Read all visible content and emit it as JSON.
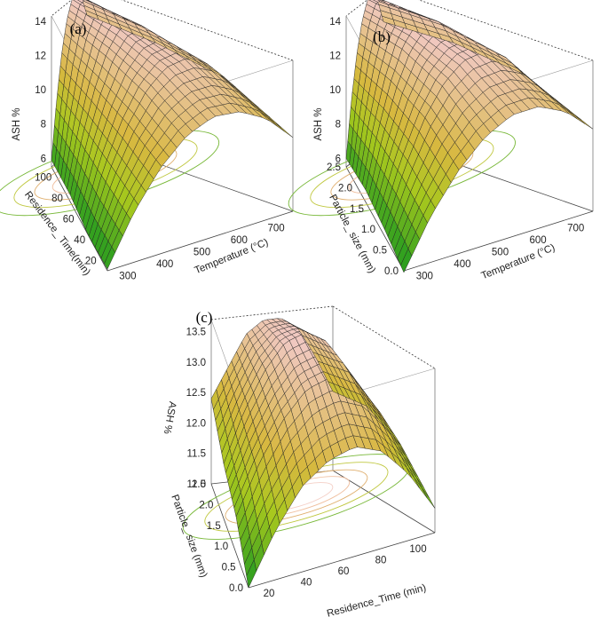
{
  "chart_data": [
    {
      "type": "surface",
      "panel_label": "(a)",
      "zlabel": "ASH %",
      "xlabel": "Temperature (°C)",
      "ylabel": "Residence_ Time(min)",
      "xlim": [
        250,
        750
      ],
      "ylim": [
        10,
        110
      ],
      "zlim": [
        5.5,
        14.3
      ],
      "xticks": [
        "300",
        "400",
        "500",
        "600",
        "700"
      ],
      "yticks": [
        "20",
        "40",
        "60",
        "80",
        "100"
      ],
      "zticks": [
        "6",
        "8",
        "10",
        "12",
        "14"
      ],
      "grid": [
        [
          5.6,
          8.4,
          10.5,
          11.9,
          12.5,
          12.3,
          11.4,
          9.8
        ],
        [
          5.5,
          8.7,
          11.1,
          12.8,
          13.7,
          13.8,
          13.2,
          11.9
        ],
        [
          5.9,
          9.0,
          11.4,
          13.2,
          14.2,
          14.3,
          13.8,
          12.5
        ],
        [
          5.9,
          9.1,
          11.6,
          13.3,
          14.3,
          14.4,
          13.9,
          12.7
        ]
      ],
      "grid_x": [
        250,
        320,
        390,
        460,
        530,
        600,
        670,
        740
      ],
      "grid_y": [
        10,
        43,
        76,
        110
      ]
    },
    {
      "type": "surface",
      "panel_label": "(b)",
      "zlabel": "ASH %",
      "xlabel": "Temperature (°C)",
      "ylabel": "Particle_ size (mm)",
      "xlim": [
        250,
        750
      ],
      "ylim": [
        0.0,
        2.5
      ],
      "zlim": [
        5.5,
        14.3
      ],
      "xticks": [
        "300",
        "400",
        "500",
        "600",
        "700"
      ],
      "yticks": [
        "0.0",
        "0.5",
        "1.0",
        "1.5",
        "2.0",
        "2.5"
      ],
      "zticks": [
        "6",
        "8",
        "10",
        "12",
        "14"
      ],
      "grid": [
        [
          5.4,
          8.2,
          10.3,
          11.8,
          12.6,
          12.6,
          11.8,
          10.3
        ],
        [
          5.9,
          9.0,
          11.5,
          13.2,
          14.1,
          14.2,
          13.6,
          12.1
        ],
        [
          6.2,
          9.3,
          11.8,
          13.6,
          14.5,
          14.6,
          14.0,
          12.5
        ],
        [
          6.0,
          9.2,
          11.6,
          13.3,
          14.3,
          14.3,
          13.7,
          12.3
        ]
      ],
      "grid_x": [
        250,
        320,
        390,
        460,
        530,
        600,
        670,
        740
      ],
      "grid_y": [
        0.0,
        0.8,
        1.6,
        2.5
      ]
    },
    {
      "type": "surface",
      "panel_label": "(c)",
      "zlabel": "ASH %",
      "xlabel": "Residence_Time (min)",
      "ylabel": "Particle_ size (mm)",
      "xlim": [
        10,
        110
      ],
      "ylim": [
        0.0,
        2.5
      ],
      "zlim": [
        11.0,
        13.7
      ],
      "xticks": [
        "20",
        "40",
        "60",
        "80",
        "100"
      ],
      "yticks": [
        "0.0",
        "0.5",
        "1.0",
        "1.5",
        "2.0",
        "2.5"
      ],
      "zticks": [
        "11.0",
        "11.5",
        "12.0",
        "12.5",
        "13.0",
        "13.5"
      ],
      "grid": [
        [
          11.0,
          11.8,
          12.4,
          12.7,
          12.8,
          12.6,
          12.1,
          11.4
        ],
        [
          11.6,
          12.4,
          13.0,
          13.4,
          13.5,
          13.3,
          12.8,
          12.1
        ],
        [
          11.9,
          12.7,
          13.3,
          13.7,
          13.8,
          13.6,
          13.1,
          12.4
        ],
        [
          12.4,
          12.9,
          13.4,
          13.6,
          13.6,
          13.4,
          12.9,
          12.3
        ]
      ],
      "grid_x": [
        10,
        24,
        38,
        52,
        67,
        81,
        95,
        110
      ],
      "grid_y": [
        0.0,
        0.8,
        1.6,
        2.5
      ]
    }
  ]
}
